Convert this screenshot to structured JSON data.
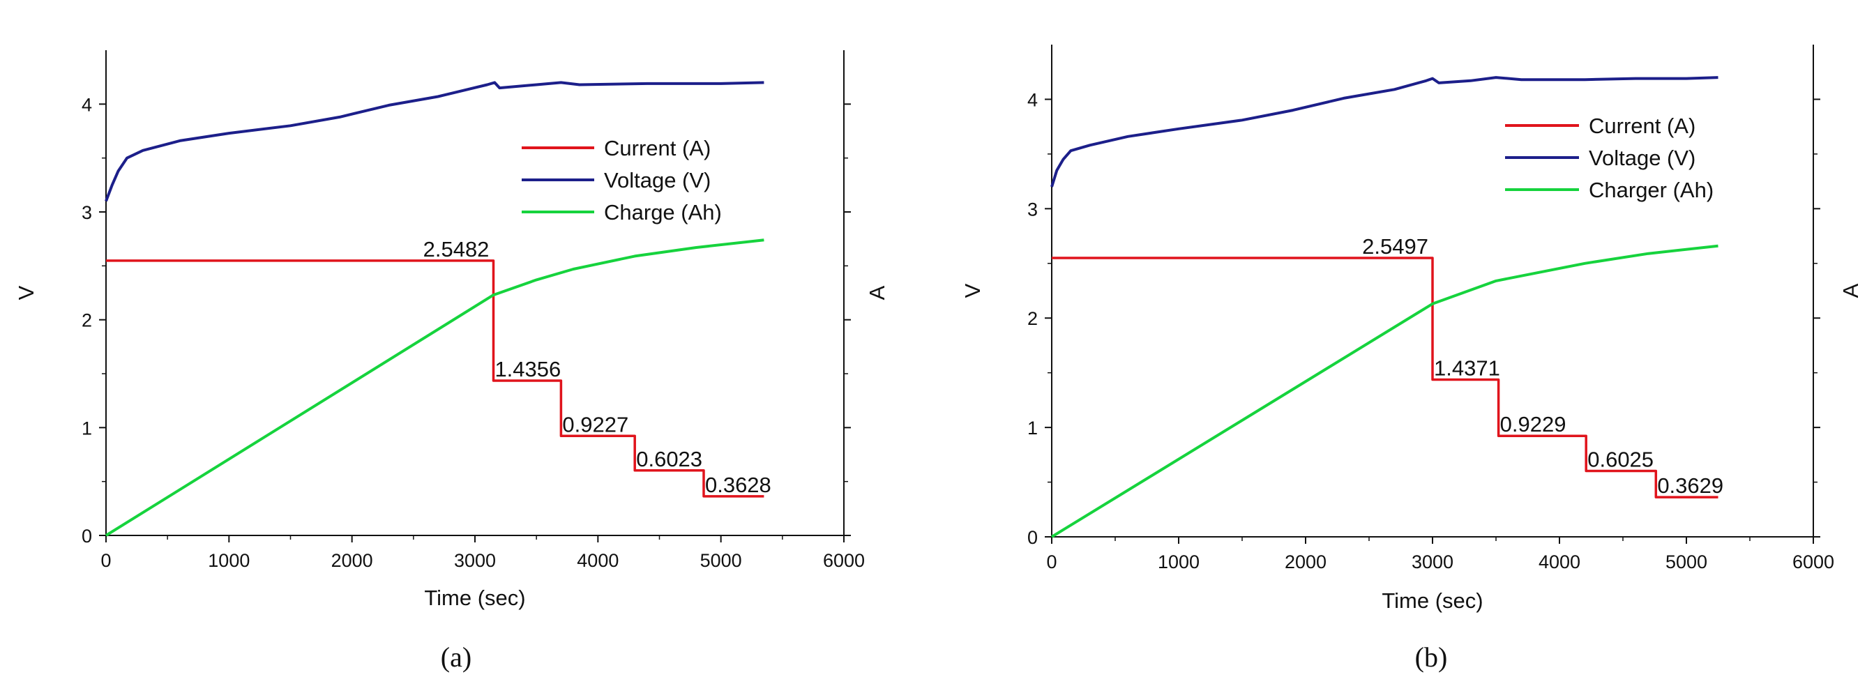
{
  "colors": {
    "current": "#e0141c",
    "voltage": "#1c1f8a",
    "charge": "#16d33d"
  },
  "chart_data": [
    {
      "type": "line",
      "panel_label": "(a)",
      "xlabel": "Time (sec)",
      "ylabel_left": "V",
      "ylabel_right": "A",
      "xlim": [
        0,
        6000
      ],
      "ylim": [
        0,
        4.5
      ],
      "x_ticks": [
        "0",
        "1000",
        "2000",
        "3000",
        "4000",
        "5000",
        "6000"
      ],
      "y_ticks": [
        "0",
        "1",
        "2",
        "3",
        "4"
      ],
      "legend_position": "center-right",
      "series": [
        {
          "name": "Current (A)",
          "color_key": "current",
          "points": [
            [
              0,
              2.5482
            ],
            [
              3150,
              2.5482
            ],
            [
              3150,
              1.4356
            ],
            [
              3700,
              1.4356
            ],
            [
              3700,
              0.9227
            ],
            [
              4300,
              0.9227
            ],
            [
              4300,
              0.6023
            ],
            [
              4860,
              0.6023
            ],
            [
              4860,
              0.3628
            ],
            [
              5350,
              0.3628
            ]
          ]
        },
        {
          "name": "Voltage (V)",
          "color_key": "voltage",
          "points": [
            [
              0,
              3.1
            ],
            [
              50,
              3.25
            ],
            [
              100,
              3.38
            ],
            [
              170,
              3.5
            ],
            [
              300,
              3.57
            ],
            [
              600,
              3.66
            ],
            [
              1000,
              3.73
            ],
            [
              1500,
              3.8
            ],
            [
              1900,
              3.88
            ],
            [
              2300,
              3.99
            ],
            [
              2700,
              4.07
            ],
            [
              3100,
              4.18
            ],
            [
              3160,
              4.2
            ],
            [
              3200,
              4.15
            ],
            [
              3500,
              4.18
            ],
            [
              3700,
              4.2
            ],
            [
              3850,
              4.18
            ],
            [
              4400,
              4.19
            ],
            [
              4700,
              4.19
            ],
            [
              5000,
              4.19
            ],
            [
              5350,
              4.2
            ]
          ]
        },
        {
          "name": "Charge (Ah)",
          "color_key": "charge",
          "points": [
            [
              0,
              0.0
            ],
            [
              3150,
              2.23
            ],
            [
              3500,
              2.37
            ],
            [
              3800,
              2.47
            ],
            [
              4300,
              2.59
            ],
            [
              4800,
              2.67
            ],
            [
              5350,
              2.74
            ]
          ]
        }
      ],
      "annotations": [
        {
          "text": "2.5482",
          "x": 3150,
          "y": 2.5482,
          "anchor": "end"
        },
        {
          "text": "1.4356",
          "x": 3150,
          "y": 1.4356,
          "anchor": "start"
        },
        {
          "text": "0.9227",
          "x": 3700,
          "y": 0.9227,
          "anchor": "start"
        },
        {
          "text": "0.6023",
          "x": 4300,
          "y": 0.6023,
          "anchor": "start"
        },
        {
          "text": "0.3628",
          "x": 4860,
          "y": 0.3628,
          "anchor": "start"
        }
      ]
    },
    {
      "type": "line",
      "panel_label": "(b)",
      "xlabel": "Time (sec)",
      "ylabel_left": "V",
      "ylabel_right": "A",
      "xlim": [
        0,
        6000
      ],
      "ylim": [
        0,
        4.5
      ],
      "x_ticks": [
        "0",
        "1000",
        "2000",
        "3000",
        "4000",
        "5000",
        "6000"
      ],
      "y_ticks": [
        "0",
        "1",
        "2",
        "3",
        "4"
      ],
      "legend_position": "center-right",
      "series": [
        {
          "name": "Current (A)",
          "color_key": "current",
          "points": [
            [
              0,
              2.5497
            ],
            [
              3000,
              2.5497
            ],
            [
              3000,
              1.4371
            ],
            [
              3520,
              1.4371
            ],
            [
              3520,
              0.9229
            ],
            [
              4210,
              0.9229
            ],
            [
              4210,
              0.6025
            ],
            [
              4760,
              0.6025
            ],
            [
              4760,
              0.3629
            ],
            [
              5250,
              0.3629
            ]
          ]
        },
        {
          "name": "Voltage (V)",
          "color_key": "voltage",
          "points": [
            [
              0,
              3.2
            ],
            [
              40,
              3.35
            ],
            [
              90,
              3.45
            ],
            [
              150,
              3.53
            ],
            [
              300,
              3.58
            ],
            [
              600,
              3.66
            ],
            [
              1000,
              3.73
            ],
            [
              1500,
              3.81
            ],
            [
              1900,
              3.9
            ],
            [
              2300,
              4.01
            ],
            [
              2700,
              4.09
            ],
            [
              2950,
              4.17
            ],
            [
              3000,
              4.19
            ],
            [
              3050,
              4.15
            ],
            [
              3300,
              4.17
            ],
            [
              3500,
              4.2
            ],
            [
              3700,
              4.18
            ],
            [
              4200,
              4.18
            ],
            [
              4600,
              4.19
            ],
            [
              5000,
              4.19
            ],
            [
              5250,
              4.2
            ]
          ]
        },
        {
          "name": "Charger (Ah)",
          "color_key": "charge",
          "points": [
            [
              0,
              0.0
            ],
            [
              3000,
              2.13
            ],
            [
              3500,
              2.34
            ],
            [
              4200,
              2.5
            ],
            [
              4700,
              2.59
            ],
            [
              5250,
              2.66
            ]
          ]
        }
      ],
      "annotations": [
        {
          "text": "2.5497",
          "x": 3000,
          "y": 2.5497,
          "anchor": "end"
        },
        {
          "text": "1.4371",
          "x": 3000,
          "y": 1.4371,
          "anchor": "start"
        },
        {
          "text": "0.9229",
          "x": 3520,
          "y": 0.9229,
          "anchor": "start"
        },
        {
          "text": "0.6025",
          "x": 4210,
          "y": 0.6025,
          "anchor": "start"
        },
        {
          "text": "0.3629",
          "x": 4760,
          "y": 0.3629,
          "anchor": "start"
        }
      ]
    }
  ]
}
